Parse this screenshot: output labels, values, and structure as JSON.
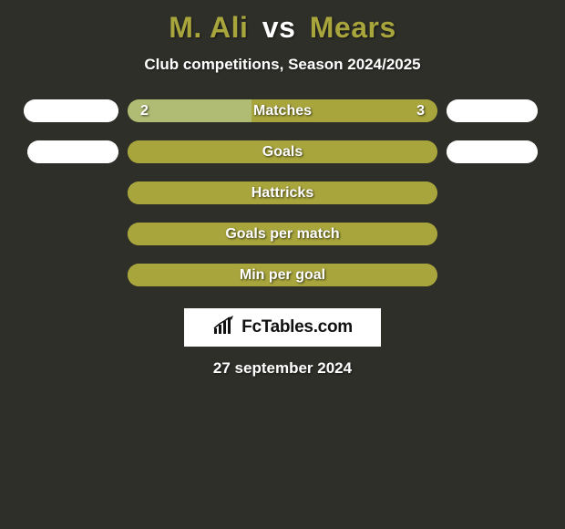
{
  "title": {
    "player1": "M. Ali",
    "vs": "vs",
    "player2": "Mears",
    "player1_color": "#a8a53d",
    "player2_color": "#a8a53d"
  },
  "subtitle": "Club competitions, Season 2024/2025",
  "bar_style": {
    "background_color": "#a8a53d",
    "left_segment_color": "#b0bc74",
    "right_segment_color": "#a8a53d",
    "label_fontsize": 16,
    "value_fontsize": 16
  },
  "pill_style": {
    "background_color": "#ffffff",
    "fill_color": "#ffffff",
    "height": 25
  },
  "rows": [
    {
      "label": "Matches",
      "left_value": "2",
      "right_value": "3",
      "left_pct": 40,
      "right_pct": 60,
      "show_left_value": true,
      "show_right_value": true,
      "left_pill_width": 104,
      "right_pill_width": 100,
      "left_pill_fill_pct": 100,
      "right_pill_fill_pct": 100
    },
    {
      "label": "Goals",
      "left_value": "",
      "right_value": "",
      "left_pct": 0,
      "right_pct": 100,
      "show_left_value": false,
      "show_right_value": false,
      "left_pill_width": 100,
      "right_pill_width": 100,
      "left_pill_fill_pct": 100,
      "right_pill_fill_pct": 100
    },
    {
      "label": "Hattricks",
      "left_value": "",
      "right_value": "",
      "left_pct": 0,
      "right_pct": 100,
      "show_left_value": false,
      "show_right_value": false,
      "left_pill_width": 0,
      "right_pill_width": 0,
      "left_pill_fill_pct": 0,
      "right_pill_fill_pct": 0
    },
    {
      "label": "Goals per match",
      "left_value": "",
      "right_value": "",
      "left_pct": 0,
      "right_pct": 100,
      "show_left_value": false,
      "show_right_value": false,
      "left_pill_width": 0,
      "right_pill_width": 0,
      "left_pill_fill_pct": 0,
      "right_pill_fill_pct": 0
    },
    {
      "label": "Min per goal",
      "left_value": "",
      "right_value": "",
      "left_pct": 0,
      "right_pct": 100,
      "show_left_value": false,
      "show_right_value": false,
      "left_pill_width": 0,
      "right_pill_width": 0,
      "left_pill_fill_pct": 0,
      "right_pill_fill_pct": 0
    }
  ],
  "brand": {
    "text": "FcTables.com",
    "icon": "chart-icon",
    "background_color": "#ffffff",
    "text_color": "#111111"
  },
  "date": "27 september 2024"
}
